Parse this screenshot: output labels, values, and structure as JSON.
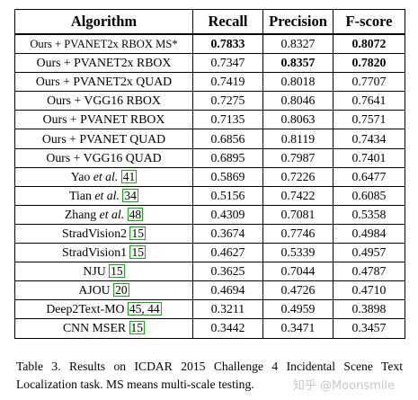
{
  "table": {
    "headers": [
      "Algorithm",
      "Recall",
      "Precision",
      "F-score"
    ],
    "rows": [
      {
        "algorithm": "Ours + PVANET2x RBOX MS*",
        "recall": "0.7833",
        "precision": "0.8327",
        "fscore": "0.8072",
        "bold": [
          "recall",
          "fscore"
        ]
      },
      {
        "algorithm": "Ours + PVANET2x RBOX",
        "recall": "0.7347",
        "precision": "0.8357",
        "fscore": "0.7820",
        "bold": [
          "precision",
          "fscore"
        ]
      },
      {
        "algorithm": "Ours + PVANET2x QUAD",
        "recall": "0.7419",
        "precision": "0.8018",
        "fscore": "0.7707",
        "bold": []
      },
      {
        "algorithm": "Ours + VGG16 RBOX",
        "recall": "0.7275",
        "precision": "0.8046",
        "fscore": "0.7641",
        "bold": []
      },
      {
        "algorithm": "Ours + PVANET RBOX",
        "recall": "0.7135",
        "precision": "0.8063",
        "fscore": "0.7571",
        "bold": []
      },
      {
        "algorithm": "Ours + PVANET QUAD",
        "recall": "0.6856",
        "precision": "0.8119",
        "fscore": "0.7434",
        "bold": []
      },
      {
        "algorithm": "Ours + VGG16 QUAD",
        "recall": "0.6895",
        "precision": "0.7987",
        "fscore": "0.7401",
        "bold": []
      },
      {
        "algorithm_name": "Yao",
        "algorithm_suffix": "et al.",
        "citation": "41",
        "recall": "0.5869",
        "precision": "0.7226",
        "fscore": "0.6477",
        "bold": []
      },
      {
        "algorithm_name": "Tian",
        "algorithm_suffix": "et al.",
        "citation": "34",
        "recall": "0.5156",
        "precision": "0.7422",
        "fscore": "0.6085",
        "bold": []
      },
      {
        "algorithm_name": "Zhang",
        "algorithm_suffix": "et al.",
        "citation": "48",
        "recall": "0.4309",
        "precision": "0.7081",
        "fscore": "0.5358",
        "bold": []
      },
      {
        "algorithm_name": "StradVision2",
        "citation": "15",
        "recall": "0.3674",
        "precision": "0.7746",
        "fscore": "0.4984",
        "bold": []
      },
      {
        "algorithm_name": "StradVision1",
        "citation": "15",
        "recall": "0.4627",
        "precision": "0.5339",
        "fscore": "0.4957",
        "bold": []
      },
      {
        "algorithm_name": "NJU",
        "citation": "15",
        "recall": "0.3625",
        "precision": "0.7044",
        "fscore": "0.4787",
        "bold": []
      },
      {
        "algorithm_name": "AJOU",
        "citation": "20",
        "recall": "0.4694",
        "precision": "0.4726",
        "fscore": "0.4710",
        "bold": []
      },
      {
        "algorithm_name": "Deep2Text-MO",
        "citation": "45, 44",
        "recall": "0.3211",
        "precision": "0.4959",
        "fscore": "0.3898",
        "bold": []
      },
      {
        "algorithm_name": "CNN MSER",
        "citation": "15",
        "recall": "0.3442",
        "precision": "0.3471",
        "fscore": "0.3457",
        "bold": []
      }
    ]
  },
  "caption": "Table 3. Results on ICDAR 2015 Challenge 4 Incidental Scene Text Localization task. MS means multi-scale testing.",
  "watermark": "知乎 @Moonsmile"
}
